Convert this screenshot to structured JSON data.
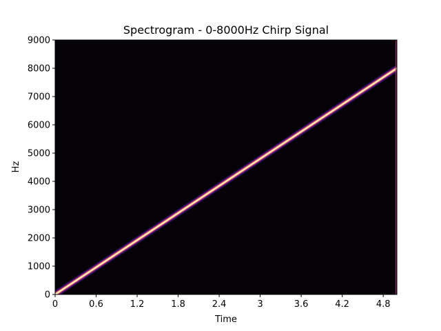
{
  "chart_data": {
    "type": "heatmap",
    "subtype": "spectrogram",
    "title": "Spectrogram - 0-8000Hz Chirp Signal",
    "xlabel": "Time",
    "ylabel": "Hz",
    "xlim": [
      0,
      5.0
    ],
    "ylim": [
      0,
      9000
    ],
    "xticks": [
      "0",
      "0.6",
      "1.2",
      "1.8",
      "2.4",
      "3",
      "3.6",
      "4.2",
      "4.8"
    ],
    "xtick_values": [
      0,
      0.6,
      1.2,
      1.8,
      2.4,
      3.0,
      3.6,
      4.2,
      4.8
    ],
    "yticks": [
      "0",
      "1000",
      "2000",
      "3000",
      "4000",
      "5000",
      "6000",
      "7000",
      "8000",
      "9000"
    ],
    "ytick_values": [
      0,
      1000,
      2000,
      3000,
      4000,
      5000,
      6000,
      7000,
      8000,
      9000
    ],
    "series": [
      {
        "x": [
          0,
          5.0
        ],
        "y": [
          0,
          8000
        ]
      }
    ],
    "colormap": "magma",
    "background_color": "#050308",
    "ridge_colors": [
      "#fcfdbf",
      "#fc8961",
      "#b73779",
      "#51127c",
      "#221150"
    ],
    "grid": false,
    "legend": "none"
  }
}
